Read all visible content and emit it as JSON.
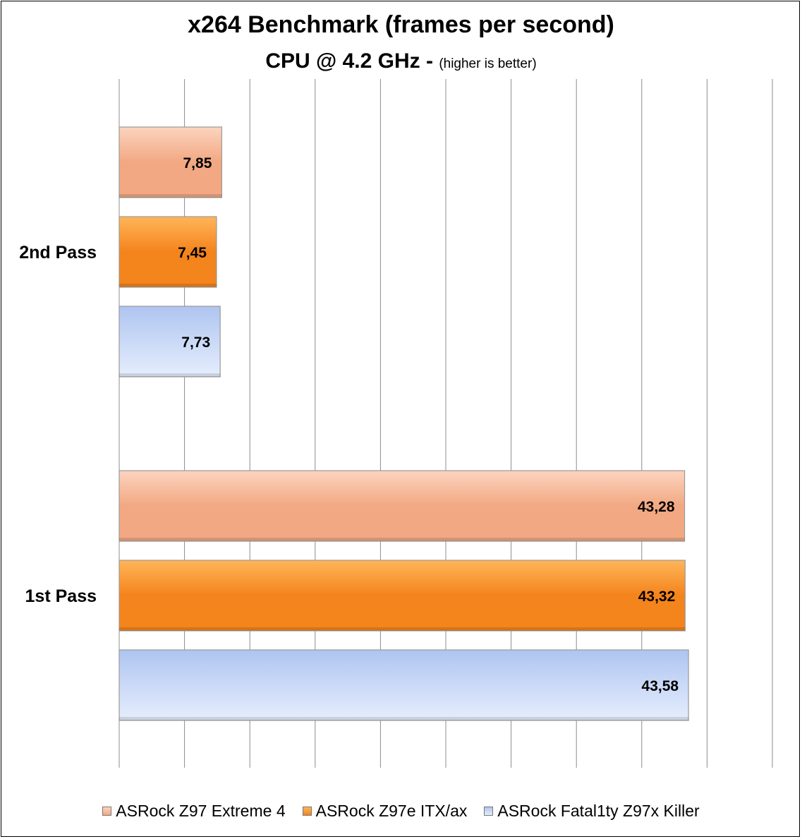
{
  "chart_data": {
    "type": "bar",
    "orientation": "horizontal",
    "title": "x264 Benchmark (frames per second)",
    "subtitle_main": "CPU @ 4.2 GHz -",
    "subtitle_note": "(higher is better)",
    "categories": [
      "2nd Pass",
      "1st Pass"
    ],
    "series": [
      {
        "name": "ASRock Z97 Extreme 4",
        "values": [
          7.85,
          43.28
        ],
        "labels": [
          "7,85",
          "43,28"
        ],
        "color": "#f2a882",
        "color_light": "#fcd4bf"
      },
      {
        "name": "ASRock Z97e ITX/ax",
        "values": [
          7.45,
          43.32
        ],
        "labels": [
          "7,45",
          "43,32"
        ],
        "color": "#f4841c",
        "color_light": "#ffb55a"
      },
      {
        "name": "ASRock Fatal1ty Z97x Killer",
        "values": [
          7.73,
          43.58
        ],
        "labels": [
          "7,73",
          "43,58"
        ],
        "color": "#aec4f0",
        "color_light": "#e6eefd"
      }
    ],
    "xlim": [
      0,
      50
    ],
    "x_gridlines_every": 5,
    "grid": true,
    "legend_position": "bottom"
  }
}
